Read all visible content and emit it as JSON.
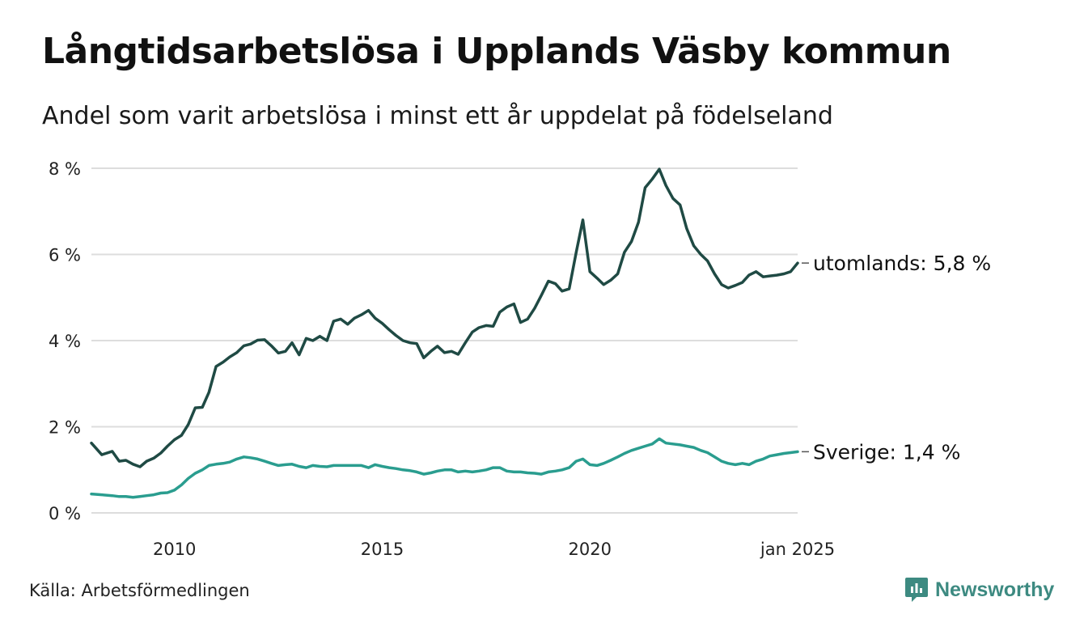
{
  "title": "Långtidsarbetslösa i Upplands Väsby kommun",
  "subtitle": "Andel som varit arbetslösa i minst ett år uppdelat på födelseland",
  "source": "Källa: Arbetsförmedlingen",
  "brand": {
    "name": "Newsworthy",
    "icon": "newsworthy-logo-icon",
    "color": "#3d8a81"
  },
  "chart_data": {
    "type": "line",
    "x_axis": {
      "min": 2008.0,
      "max": 2025.0,
      "ticks": [
        2010,
        2015,
        2020,
        2025
      ],
      "tick_labels": [
        "2010",
        "2015",
        "2020",
        "jan 2025"
      ]
    },
    "y_axis": {
      "min": 0,
      "max": 8,
      "ticks": [
        0,
        2,
        4,
        6,
        8
      ],
      "tick_labels": [
        "0 %",
        "2 %",
        "4 %",
        "6 %",
        "8 %"
      ]
    },
    "grid": "horizontal",
    "legend": "direct labels at line ends",
    "series": [
      {
        "name": "utomlands",
        "end_label": "utomlands: 5,8 %",
        "color": "#1f4a44",
        "points": [
          [
            2008.0,
            1.62
          ],
          [
            2008.25,
            1.35
          ],
          [
            2008.5,
            1.43
          ],
          [
            2008.67,
            1.2
          ],
          [
            2008.83,
            1.22
          ],
          [
            2009.0,
            1.13
          ],
          [
            2009.17,
            1.07
          ],
          [
            2009.33,
            1.2
          ],
          [
            2009.5,
            1.27
          ],
          [
            2009.67,
            1.39
          ],
          [
            2009.83,
            1.55
          ],
          [
            2010.0,
            1.7
          ],
          [
            2010.17,
            1.8
          ],
          [
            2010.33,
            2.05
          ],
          [
            2010.5,
            2.44
          ],
          [
            2010.67,
            2.45
          ],
          [
            2010.83,
            2.8
          ],
          [
            2011.0,
            3.4
          ],
          [
            2011.17,
            3.5
          ],
          [
            2011.33,
            3.62
          ],
          [
            2011.5,
            3.72
          ],
          [
            2011.67,
            3.88
          ],
          [
            2011.83,
            3.92
          ],
          [
            2012.0,
            4.01
          ],
          [
            2012.17,
            4.02
          ],
          [
            2012.33,
            3.88
          ],
          [
            2012.5,
            3.71
          ],
          [
            2012.67,
            3.75
          ],
          [
            2012.83,
            3.95
          ],
          [
            2013.0,
            3.67
          ],
          [
            2013.17,
            4.05
          ],
          [
            2013.33,
            4.0
          ],
          [
            2013.5,
            4.1
          ],
          [
            2013.67,
            4.0
          ],
          [
            2013.83,
            4.45
          ],
          [
            2014.0,
            4.5
          ],
          [
            2014.17,
            4.38
          ],
          [
            2014.33,
            4.52
          ],
          [
            2014.5,
            4.6
          ],
          [
            2014.67,
            4.7
          ],
          [
            2014.83,
            4.52
          ],
          [
            2015.0,
            4.4
          ],
          [
            2015.17,
            4.25
          ],
          [
            2015.33,
            4.12
          ],
          [
            2015.5,
            4.0
          ],
          [
            2015.67,
            3.95
          ],
          [
            2015.83,
            3.93
          ],
          [
            2016.0,
            3.6
          ],
          [
            2016.17,
            3.75
          ],
          [
            2016.33,
            3.87
          ],
          [
            2016.5,
            3.72
          ],
          [
            2016.67,
            3.75
          ],
          [
            2016.83,
            3.68
          ],
          [
            2017.0,
            3.95
          ],
          [
            2017.17,
            4.2
          ],
          [
            2017.33,
            4.3
          ],
          [
            2017.5,
            4.35
          ],
          [
            2017.67,
            4.33
          ],
          [
            2017.83,
            4.66
          ],
          [
            2018.0,
            4.78
          ],
          [
            2018.17,
            4.85
          ],
          [
            2018.33,
            4.42
          ],
          [
            2018.5,
            4.5
          ],
          [
            2018.67,
            4.75
          ],
          [
            2018.83,
            5.05
          ],
          [
            2019.0,
            5.38
          ],
          [
            2019.17,
            5.32
          ],
          [
            2019.33,
            5.15
          ],
          [
            2019.5,
            5.2
          ],
          [
            2019.67,
            6.05
          ],
          [
            2019.83,
            6.8
          ],
          [
            2020.0,
            5.6
          ],
          [
            2020.17,
            5.45
          ],
          [
            2020.33,
            5.3
          ],
          [
            2020.5,
            5.4
          ],
          [
            2020.67,
            5.55
          ],
          [
            2020.83,
            6.05
          ],
          [
            2021.0,
            6.3
          ],
          [
            2021.17,
            6.75
          ],
          [
            2021.33,
            7.55
          ],
          [
            2021.5,
            7.75
          ],
          [
            2021.67,
            7.98
          ],
          [
            2021.83,
            7.6
          ],
          [
            2022.0,
            7.3
          ],
          [
            2022.17,
            7.15
          ],
          [
            2022.33,
            6.6
          ],
          [
            2022.5,
            6.2
          ],
          [
            2022.67,
            6.0
          ],
          [
            2022.83,
            5.85
          ],
          [
            2023.0,
            5.55
          ],
          [
            2023.17,
            5.3
          ],
          [
            2023.33,
            5.22
          ],
          [
            2023.5,
            5.28
          ],
          [
            2023.67,
            5.35
          ],
          [
            2023.83,
            5.52
          ],
          [
            2024.0,
            5.6
          ],
          [
            2024.17,
            5.48
          ],
          [
            2024.33,
            5.5
          ],
          [
            2024.5,
            5.52
          ],
          [
            2024.67,
            5.55
          ],
          [
            2024.83,
            5.6
          ],
          [
            2025.0,
            5.8
          ]
        ]
      },
      {
        "name": "Sverige",
        "end_label": "Sverige: 1,4 %",
        "color": "#2a9d8f",
        "points": [
          [
            2008.0,
            0.44
          ],
          [
            2008.25,
            0.42
          ],
          [
            2008.5,
            0.4
          ],
          [
            2008.67,
            0.38
          ],
          [
            2008.83,
            0.38
          ],
          [
            2009.0,
            0.36
          ],
          [
            2009.17,
            0.38
          ],
          [
            2009.33,
            0.4
          ],
          [
            2009.5,
            0.42
          ],
          [
            2009.67,
            0.46
          ],
          [
            2009.83,
            0.47
          ],
          [
            2010.0,
            0.53
          ],
          [
            2010.17,
            0.65
          ],
          [
            2010.33,
            0.8
          ],
          [
            2010.5,
            0.92
          ],
          [
            2010.67,
            1.0
          ],
          [
            2010.83,
            1.1
          ],
          [
            2011.0,
            1.13
          ],
          [
            2011.17,
            1.15
          ],
          [
            2011.33,
            1.18
          ],
          [
            2011.5,
            1.25
          ],
          [
            2011.67,
            1.3
          ],
          [
            2011.83,
            1.28
          ],
          [
            2012.0,
            1.25
          ],
          [
            2012.17,
            1.2
          ],
          [
            2012.33,
            1.15
          ],
          [
            2012.5,
            1.1
          ],
          [
            2012.67,
            1.12
          ],
          [
            2012.83,
            1.13
          ],
          [
            2013.0,
            1.08
          ],
          [
            2013.17,
            1.05
          ],
          [
            2013.33,
            1.1
          ],
          [
            2013.5,
            1.08
          ],
          [
            2013.67,
            1.07
          ],
          [
            2013.83,
            1.1
          ],
          [
            2014.0,
            1.1
          ],
          [
            2014.17,
            1.1
          ],
          [
            2014.33,
            1.1
          ],
          [
            2014.5,
            1.1
          ],
          [
            2014.67,
            1.05
          ],
          [
            2014.83,
            1.12
          ],
          [
            2015.0,
            1.08
          ],
          [
            2015.17,
            1.05
          ],
          [
            2015.33,
            1.03
          ],
          [
            2015.5,
            1.0
          ],
          [
            2015.67,
            0.98
          ],
          [
            2015.83,
            0.95
          ],
          [
            2016.0,
            0.9
          ],
          [
            2016.17,
            0.93
          ],
          [
            2016.33,
            0.97
          ],
          [
            2016.5,
            1.0
          ],
          [
            2016.67,
            1.0
          ],
          [
            2016.83,
            0.95
          ],
          [
            2017.0,
            0.97
          ],
          [
            2017.17,
            0.95
          ],
          [
            2017.33,
            0.97
          ],
          [
            2017.5,
            1.0
          ],
          [
            2017.67,
            1.05
          ],
          [
            2017.83,
            1.05
          ],
          [
            2018.0,
            0.97
          ],
          [
            2018.17,
            0.95
          ],
          [
            2018.33,
            0.95
          ],
          [
            2018.5,
            0.93
          ],
          [
            2018.67,
            0.92
          ],
          [
            2018.83,
            0.9
          ],
          [
            2019.0,
            0.95
          ],
          [
            2019.17,
            0.97
          ],
          [
            2019.33,
            1.0
          ],
          [
            2019.5,
            1.05
          ],
          [
            2019.67,
            1.2
          ],
          [
            2019.83,
            1.25
          ],
          [
            2020.0,
            1.12
          ],
          [
            2020.17,
            1.1
          ],
          [
            2020.33,
            1.15
          ],
          [
            2020.5,
            1.22
          ],
          [
            2020.67,
            1.3
          ],
          [
            2020.83,
            1.38
          ],
          [
            2021.0,
            1.45
          ],
          [
            2021.17,
            1.5
          ],
          [
            2021.33,
            1.55
          ],
          [
            2021.5,
            1.6
          ],
          [
            2021.67,
            1.72
          ],
          [
            2021.83,
            1.62
          ],
          [
            2022.0,
            1.6
          ],
          [
            2022.17,
            1.58
          ],
          [
            2022.33,
            1.55
          ],
          [
            2022.5,
            1.52
          ],
          [
            2022.67,
            1.45
          ],
          [
            2022.83,
            1.4
          ],
          [
            2023.0,
            1.3
          ],
          [
            2023.17,
            1.2
          ],
          [
            2023.33,
            1.15
          ],
          [
            2023.5,
            1.12
          ],
          [
            2023.67,
            1.15
          ],
          [
            2023.83,
            1.12
          ],
          [
            2024.0,
            1.2
          ],
          [
            2024.17,
            1.25
          ],
          [
            2024.33,
            1.32
          ],
          [
            2024.5,
            1.35
          ],
          [
            2024.67,
            1.38
          ],
          [
            2024.83,
            1.4
          ],
          [
            2025.0,
            1.42
          ]
        ]
      }
    ]
  }
}
